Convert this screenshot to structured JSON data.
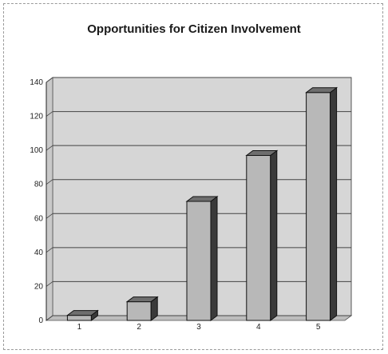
{
  "chart_data": {
    "type": "bar",
    "title": "Opportunities for Citizen Involvement",
    "xlabel": "",
    "ylabel": "",
    "categories": [
      "1",
      "2",
      "3",
      "4",
      "5"
    ],
    "values": [
      3,
      11,
      70,
      97,
      134
    ],
    "ylim": [
      0,
      140
    ],
    "yticks": [
      0,
      20,
      40,
      60,
      80,
      100,
      120,
      140
    ],
    "grid": true,
    "legend": "none",
    "style": "3d-bar",
    "colors": {
      "bar_front": "#b8b8b8",
      "bar_side": "#3a3a3a",
      "bar_top": "#6e6e6e",
      "plot_bg": "#d6d6d6"
    }
  }
}
